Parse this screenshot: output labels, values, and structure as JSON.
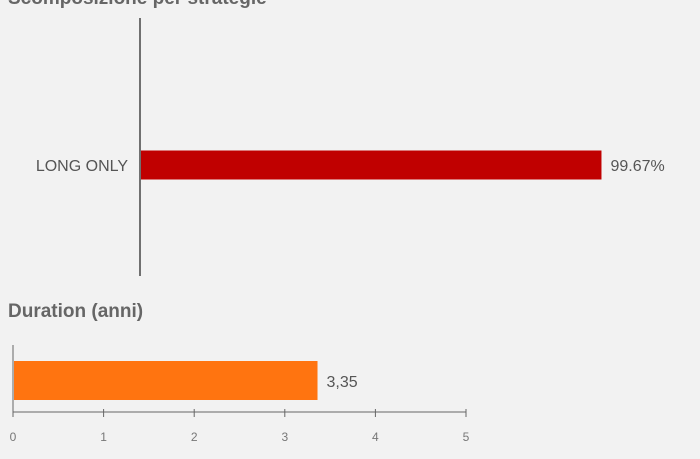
{
  "chart_data": [
    {
      "type": "bar",
      "orientation": "horizontal",
      "title": "Scomposizione per strategie",
      "categories": [
        "LONG ONLY"
      ],
      "values": [
        99.67
      ],
      "value_labels": [
        "99.67%"
      ],
      "xlim": [
        0,
        100
      ],
      "color": "#c00000"
    },
    {
      "type": "bar",
      "orientation": "horizontal",
      "title": "Duration (anni)",
      "categories": [
        ""
      ],
      "values": [
        3.35
      ],
      "value_labels": [
        "3,35"
      ],
      "xlim": [
        0,
        5
      ],
      "xticks": [
        "0",
        "1",
        "2",
        "3",
        "4",
        "5"
      ],
      "color": "#ff7410"
    }
  ]
}
